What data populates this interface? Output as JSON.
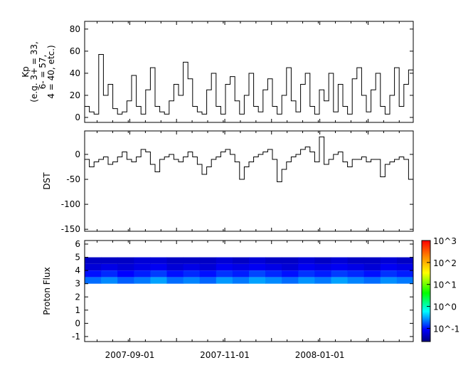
{
  "chart_data": [
    {
      "type": "line",
      "ylabel_lines": [
        "Kp",
        "(e.g. 3+ = 33,",
        "6- = 57,",
        "4 = 40, etc.)"
      ],
      "ylim": [
        -4.5,
        87
      ],
      "yticks": [
        0,
        20,
        40,
        60,
        80
      ],
      "x_start": "2007-08-03",
      "x_end": "2008-03-01",
      "values": [
        10,
        5,
        3,
        57,
        20,
        30,
        8,
        3,
        5,
        15,
        38,
        10,
        3,
        25,
        45,
        10,
        5,
        3,
        15,
        30,
        20,
        50,
        35,
        10,
        5,
        3,
        25,
        40,
        10,
        3,
        30,
        37,
        15,
        3,
        20,
        40,
        10,
        5,
        25,
        35,
        10,
        3,
        20,
        45,
        15,
        5,
        30,
        40,
        10,
        3,
        25,
        15,
        40,
        5,
        30,
        10,
        3,
        35,
        45,
        20,
        5,
        25,
        40,
        10,
        3,
        20,
        45,
        10,
        30,
        43
      ]
    },
    {
      "type": "line",
      "ylabel": "DST",
      "ylim": [
        -154,
        47
      ],
      "yticks": [
        0,
        -50,
        -100,
        -150
      ],
      "x_start": "2007-08-03",
      "x_end": "2008-03-01",
      "values": [
        -10,
        -25,
        -15,
        -10,
        -5,
        -20,
        -15,
        -5,
        5,
        -10,
        -15,
        -5,
        10,
        5,
        -20,
        -35,
        -10,
        -5,
        0,
        -10,
        -15,
        -5,
        5,
        -5,
        -20,
        -40,
        -25,
        -10,
        -5,
        5,
        10,
        0,
        -15,
        -50,
        -25,
        -15,
        -5,
        0,
        5,
        10,
        -10,
        -55,
        -30,
        -15,
        -5,
        0,
        10,
        15,
        5,
        -15,
        35,
        -20,
        -10,
        0,
        5,
        -15,
        -25,
        -10,
        -10,
        -5,
        -15,
        -10,
        -10,
        -45,
        -20,
        -15,
        -10,
        -5,
        -10,
        -50
      ]
    },
    {
      "type": "heatmap",
      "ylabel": "Proton Flux",
      "ylim": [
        -1.38,
        6.27
      ],
      "yticks": [
        -1,
        0,
        1,
        2,
        3,
        4,
        5,
        6
      ],
      "x_start": "2007-08-03",
      "x_end": "2008-03-01",
      "y_bins": [
        3,
        3.5,
        4,
        4.5,
        5
      ],
      "z": [
        [
          0.2,
          0.25,
          0.18,
          0.22,
          0.3,
          0.2,
          0.24,
          0.19,
          0.28,
          0.22,
          0.3,
          0.25,
          0.2,
          0.27,
          0.22,
          0.3,
          0.24,
          0.2,
          0.26,
          0.22
        ],
        [
          0.1,
          0.12,
          0.09,
          0.11,
          0.14,
          0.1,
          0.12,
          0.1,
          0.13,
          0.11,
          0.15,
          0.12,
          0.1,
          0.13,
          0.11,
          0.14,
          0.12,
          0.1,
          0.13,
          0.11
        ],
        [
          0.06,
          0.07,
          0.06,
          0.07,
          0.08,
          0.06,
          0.07,
          0.06,
          0.08,
          0.07,
          0.08,
          0.07,
          0.06,
          0.08,
          0.07,
          0.08,
          0.07,
          0.06,
          0.08,
          0.07
        ],
        [
          0.05,
          0.05,
          0.05,
          0.06,
          0.06,
          0.05,
          0.05,
          0.05,
          0.06,
          0.05,
          0.06,
          0.05,
          0.05,
          0.06,
          0.05,
          0.06,
          0.05,
          0.05,
          0.06,
          0.05
        ]
      ],
      "zlog": true,
      "zlim": [
        0.025,
        1000
      ],
      "colorbar_ticks": [
        "10^-1",
        "10^0",
        "10^1",
        "10^2",
        "10^3"
      ]
    }
  ],
  "x_ticks": [
    {
      "date": "2007-09-01",
      "label": "2007-09-01"
    },
    {
      "date": "2007-11-01",
      "label": "2007-11-01"
    },
    {
      "date": "2008-01-01",
      "label": "2008-01-01"
    }
  ]
}
